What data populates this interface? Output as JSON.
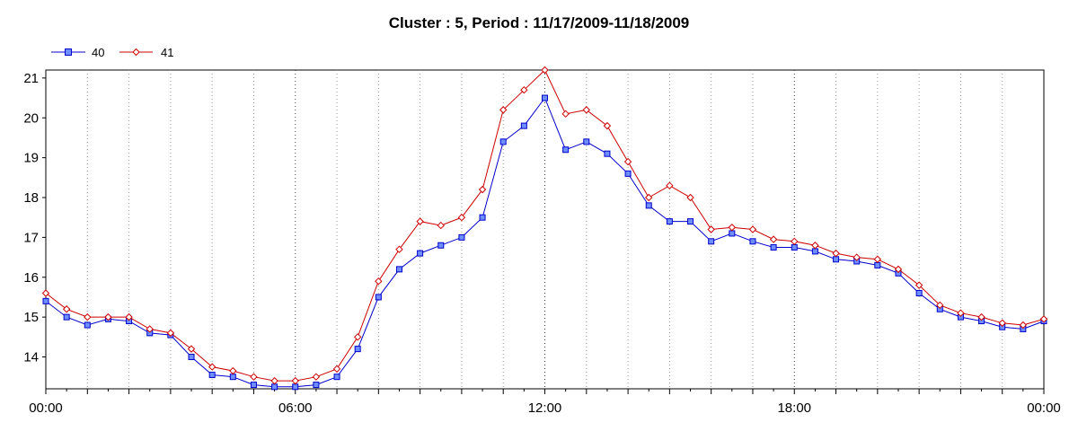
{
  "chart_data": {
    "type": "line",
    "title": "Cluster : 5, Period : 11/17/2009-11/18/2009",
    "xlabel": "",
    "ylabel": "",
    "x_tick_labels": [
      "00:00",
      "06:00",
      "12:00",
      "18:00",
      "00:00"
    ],
    "x_range_hours": [
      0,
      24
    ],
    "y_ticks": [
      14,
      15,
      16,
      17,
      18,
      19,
      20,
      21
    ],
    "ylim": [
      13.2,
      21.2
    ],
    "grid": "vertical dotted lines",
    "legend_position": "top-left",
    "x_hours": [
      0,
      0.5,
      1,
      1.5,
      2,
      2.5,
      3,
      3.5,
      4,
      4.5,
      5,
      5.5,
      6,
      6.5,
      7,
      7.5,
      8,
      8.5,
      9,
      9.5,
      10,
      10.5,
      11,
      11.5,
      12,
      12.5,
      13,
      13.5,
      14,
      14.5,
      15,
      15.5,
      16,
      16.5,
      17,
      17.5,
      18,
      18.5,
      19,
      19.5,
      20,
      20.5,
      21,
      21.5,
      22,
      22.5,
      23,
      23.5,
      24
    ],
    "series": [
      {
        "name": "40",
        "color": "#0000cc",
        "marker": "square",
        "values": [
          15.4,
          15.0,
          14.8,
          14.95,
          14.9,
          14.6,
          14.55,
          14.0,
          13.55,
          13.5,
          13.3,
          13.25,
          13.25,
          13.3,
          13.5,
          14.2,
          15.5,
          16.2,
          16.6,
          16.8,
          17.0,
          17.5,
          19.4,
          19.8,
          20.5,
          19.2,
          19.4,
          19.1,
          18.6,
          17.8,
          17.4,
          17.4,
          16.9,
          17.1,
          16.9,
          16.75,
          16.75,
          16.65,
          16.45,
          16.4,
          16.3,
          16.1,
          15.6,
          15.2,
          15.0,
          14.9,
          14.75,
          14.7,
          14.9
        ]
      },
      {
        "name": "41",
        "color": "#cc0000",
        "marker": "diamond",
        "values": [
          15.6,
          15.2,
          15.0,
          15.0,
          15.0,
          14.7,
          14.6,
          14.2,
          13.75,
          13.65,
          13.5,
          13.4,
          13.4,
          13.5,
          13.7,
          14.5,
          15.9,
          16.7,
          17.4,
          17.3,
          17.5,
          18.2,
          20.2,
          20.7,
          21.2,
          20.1,
          20.2,
          19.8,
          18.9,
          18.0,
          18.3,
          18.0,
          17.2,
          17.25,
          17.2,
          16.95,
          16.9,
          16.8,
          16.6,
          16.5,
          16.45,
          16.2,
          15.8,
          15.3,
          15.1,
          15.0,
          14.85,
          14.8,
          14.95
        ]
      }
    ]
  }
}
